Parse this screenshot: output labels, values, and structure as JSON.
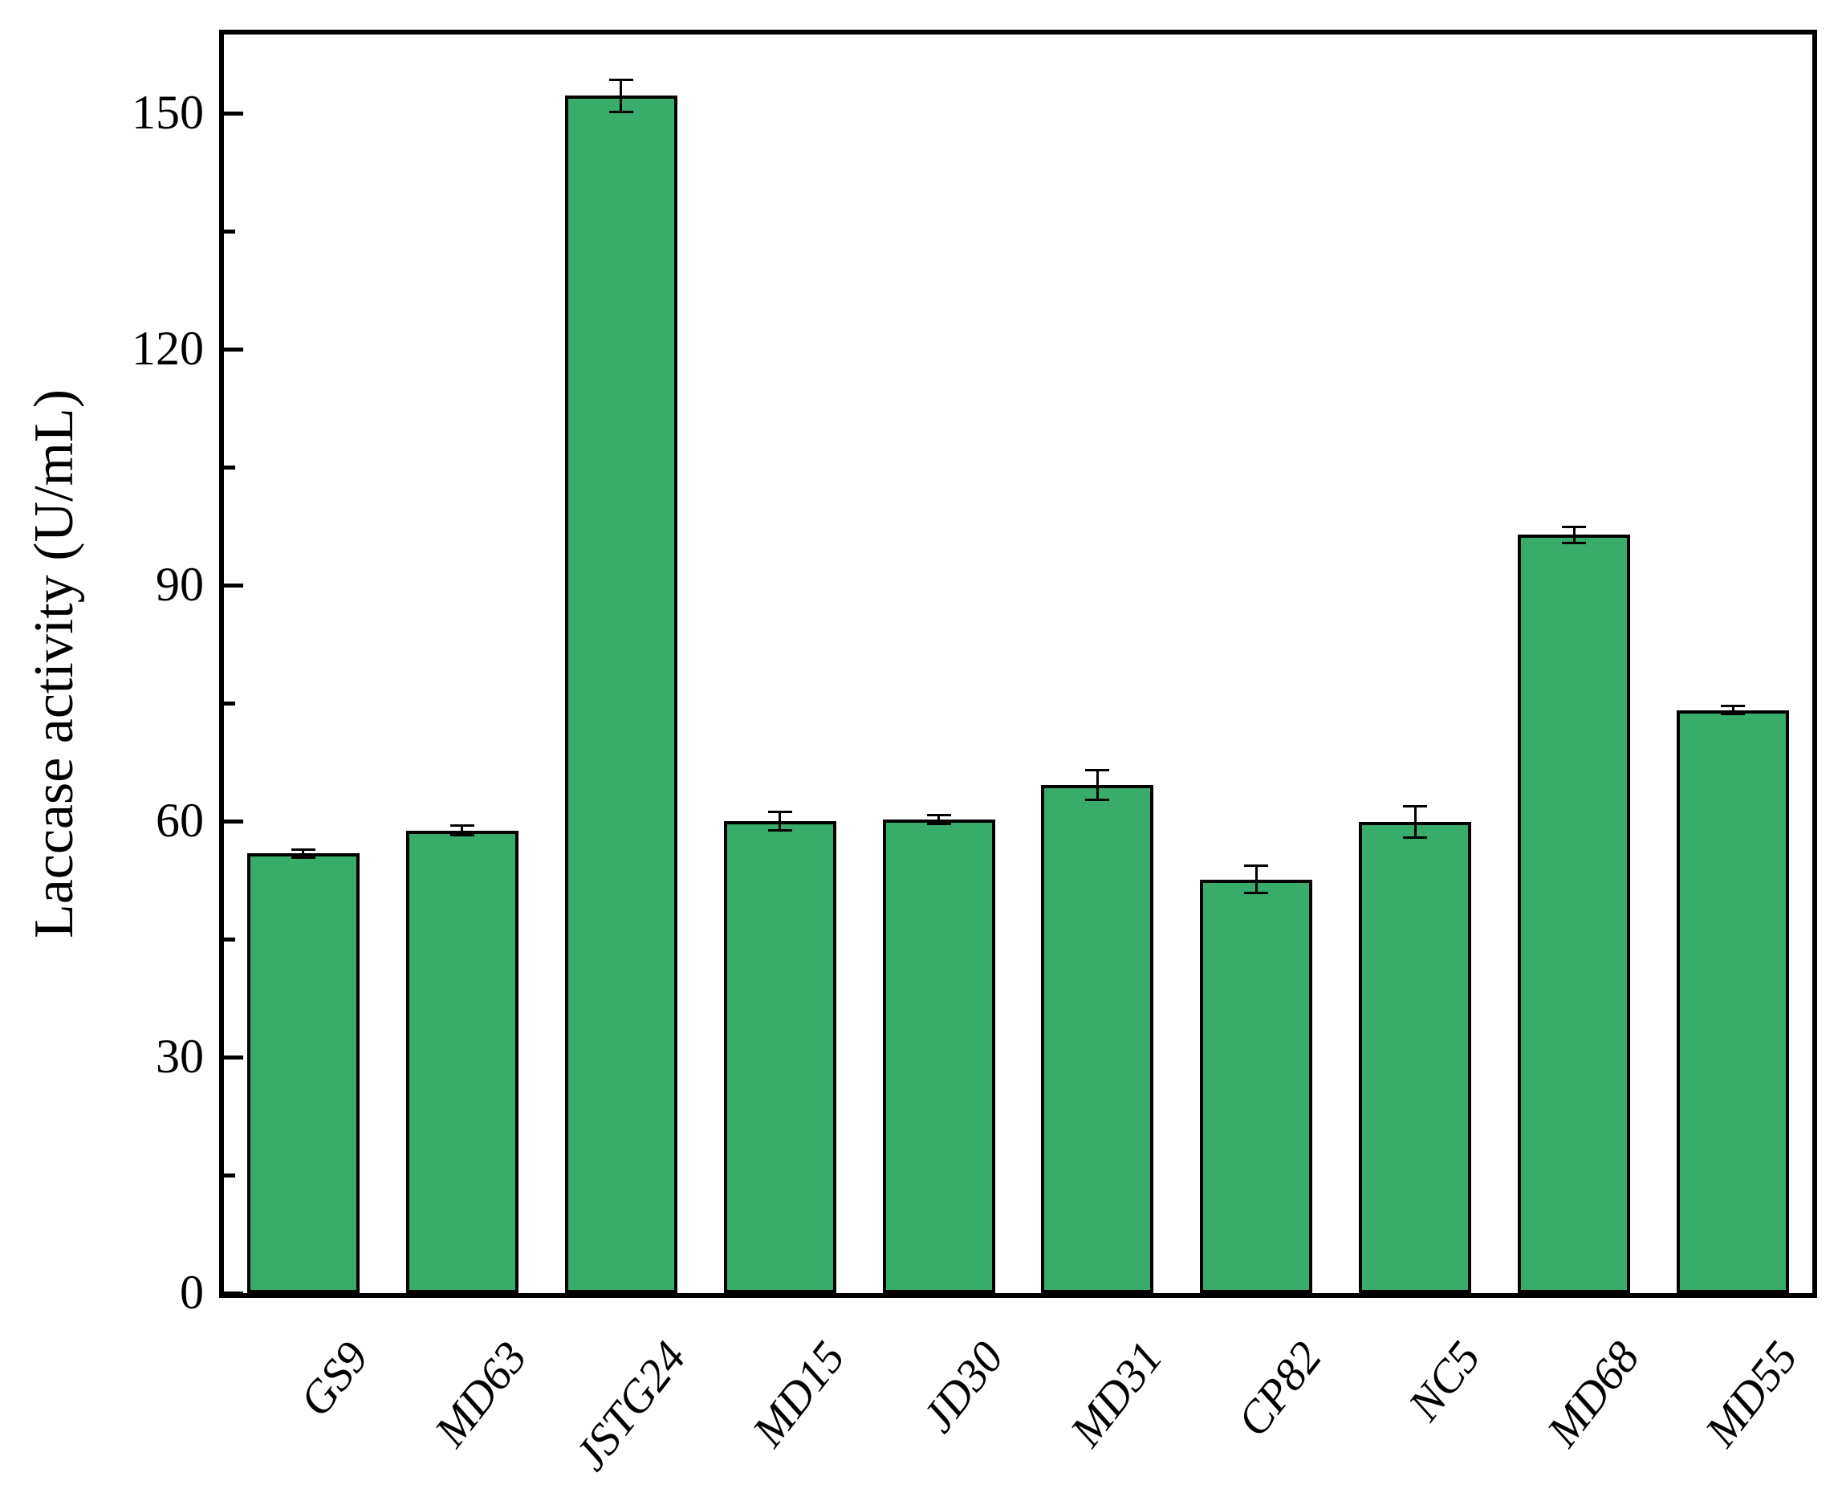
{
  "chart_data": {
    "type": "bar",
    "title": "",
    "xlabel": "",
    "ylabel": "Laccase activity (U/mL)",
    "categories": [
      "GS9",
      "MD63",
      "JSTG24",
      "MD15",
      "JD30",
      "MD31",
      "CP82",
      "NC5",
      "MD68",
      "MD55"
    ],
    "values": [
      55.9,
      58.8,
      152.2,
      60.0,
      60.2,
      64.6,
      52.6,
      59.9,
      96.4,
      74.1
    ],
    "errors": [
      0.5,
      0.6,
      2.0,
      1.2,
      0.6,
      1.9,
      1.7,
      2.0,
      1.0,
      0.5
    ],
    "ylim": [
      0,
      160
    ],
    "ytick_major": [
      0,
      30,
      60,
      90,
      120,
      150
    ],
    "ytick_minor_step": 15,
    "ytick_labels": [
      "0",
      "30",
      "60",
      "90",
      "120",
      "150"
    ],
    "bar_color": "#38AC6B",
    "bar_edge_color": "#000000",
    "error_bar_color": "#000000",
    "grid": false,
    "legend": false
  }
}
